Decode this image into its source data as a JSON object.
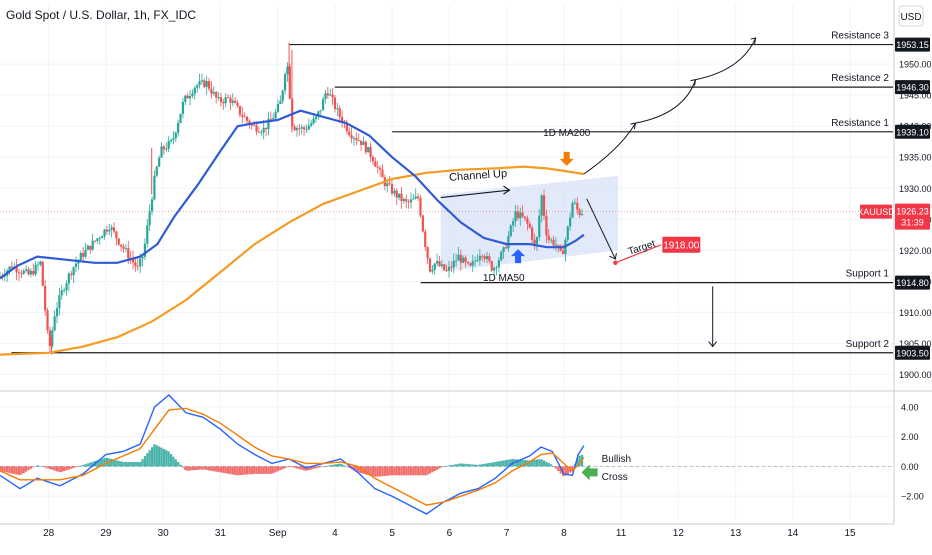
{
  "header": {
    "title": "Gold Spot / U.S. Dollar, 1h, FX_IDC",
    "currency": "USD"
  },
  "chart_data": [
    {
      "type": "candlestick",
      "symbol": "XAUUSD",
      "price_label": "1926.23",
      "countdown": "31:39",
      "y_ticks": [
        1900,
        1905,
        1910,
        1915,
        1920,
        1925,
        1930,
        1935,
        1940,
        1945,
        1950
      ],
      "y_tick_labels": [
        "1900.00",
        "1905.00",
        "1910.00",
        "1915.00",
        "1920.00",
        "1925.00",
        "1930.00",
        "1935.00",
        "1940.00",
        "1945.00",
        "1950.00"
      ],
      "ylim": [
        1897.5,
        1955.5
      ],
      "x_ticks": [
        {
          "x": 0,
          "label": "28"
        },
        {
          "x": 1,
          "label": "29"
        },
        {
          "x": 2,
          "label": "30"
        },
        {
          "x": 3,
          "label": "31"
        },
        {
          "x": 4,
          "label": "Sep"
        },
        {
          "x": 5,
          "label": "4"
        },
        {
          "x": 6,
          "label": "5"
        },
        {
          "x": 7,
          "label": "6"
        },
        {
          "x": 8,
          "label": "7"
        },
        {
          "x": 9,
          "label": "8"
        },
        {
          "x": 10,
          "label": "11"
        },
        {
          "x": 11,
          "label": "12"
        },
        {
          "x": 12,
          "label": "13"
        },
        {
          "x": 13,
          "label": "14"
        },
        {
          "x": 14,
          "label": "15"
        }
      ],
      "xlim": [
        -0.85,
        14.75
      ],
      "candles_path": [
        [
          -0.85,
          1915.5
        ],
        [
          -0.6,
          1917.5
        ],
        [
          -0.3,
          1916
        ],
        [
          -0.1,
          1918
        ],
        [
          0.05,
          1903.8
        ],
        [
          0.15,
          1910
        ],
        [
          0.3,
          1914
        ],
        [
          0.45,
          1917
        ],
        [
          0.6,
          1919
        ],
        [
          0.8,
          1921
        ],
        [
          0.95,
          1922.5
        ],
        [
          1.1,
          1924
        ],
        [
          1.3,
          1921
        ],
        [
          1.45,
          1919
        ],
        [
          1.6,
          1917
        ],
        [
          1.7,
          1919.5
        ],
        [
          1.8,
          1926
        ],
        [
          1.9,
          1932
        ],
        [
          2.0,
          1936
        ],
        [
          2.2,
          1937.5
        ],
        [
          2.4,
          1944
        ],
        [
          2.6,
          1946.5
        ],
        [
          2.8,
          1947
        ],
        [
          3.0,
          1944
        ],
        [
          3.2,
          1944.5
        ],
        [
          3.4,
          1942
        ],
        [
          3.6,
          1940
        ],
        [
          3.8,
          1939.5
        ],
        [
          4.0,
          1942
        ],
        [
          4.1,
          1944
        ],
        [
          4.2,
          1951
        ],
        [
          4.3,
          1940
        ],
        [
          4.5,
          1939.5
        ],
        [
          4.7,
          1941
        ],
        [
          4.8,
          1943
        ],
        [
          4.9,
          1946
        ],
        [
          5.1,
          1942
        ],
        [
          5.3,
          1939
        ],
        [
          5.5,
          1937.5
        ],
        [
          5.7,
          1935
        ],
        [
          5.9,
          1931
        ],
        [
          6.1,
          1929
        ],
        [
          6.3,
          1927.5
        ],
        [
          6.5,
          1928.5
        ],
        [
          6.6,
          1922
        ],
        [
          6.7,
          1917
        ],
        [
          6.8,
          1918
        ],
        [
          7.0,
          1916.5
        ],
        [
          7.2,
          1919
        ],
        [
          7.4,
          1917
        ],
        [
          7.6,
          1920
        ],
        [
          7.8,
          1917
        ],
        [
          8.0,
          1920
        ],
        [
          8.2,
          1926
        ],
        [
          8.35,
          1925
        ],
        [
          8.45,
          1923.5
        ],
        [
          8.55,
          1920
        ],
        [
          8.65,
          1929
        ],
        [
          8.75,
          1922
        ],
        [
          8.9,
          1921
        ],
        [
          9.0,
          1919
        ],
        [
          9.1,
          1923
        ],
        [
          9.2,
          1928
        ],
        [
          9.3,
          1926
        ],
        [
          9.35,
          1926.2
        ]
      ],
      "series": [
        {
          "name": "1D MA50",
          "color": "#2f5bd6",
          "points": [
            [
              -0.85,
              1915.5
            ],
            [
              -0.55,
              1917.5
            ],
            [
              -0.2,
              1919
            ],
            [
              0.3,
              1918.5
            ],
            [
              0.8,
              1918
            ],
            [
              1.2,
              1918
            ],
            [
              1.6,
              1919
            ],
            [
              1.9,
              1921
            ],
            [
              2.2,
              1925.5
            ],
            [
              2.6,
              1930.5
            ],
            [
              3.0,
              1936
            ],
            [
              3.3,
              1940
            ],
            [
              3.6,
              1940.5
            ],
            [
              4.0,
              1941
            ],
            [
              4.4,
              1942.5
            ],
            [
              4.8,
              1941.5
            ],
            [
              5.2,
              1940.5
            ],
            [
              5.6,
              1938.5
            ],
            [
              6.0,
              1935
            ],
            [
              6.4,
              1932
            ],
            [
              6.8,
              1928
            ],
            [
              7.2,
              1924.5
            ],
            [
              7.6,
              1922
            ],
            [
              8.0,
              1921
            ],
            [
              8.4,
              1921
            ],
            [
              8.7,
              1920.5
            ],
            [
              9.0,
              1920.5
            ],
            [
              9.2,
              1921.5
            ],
            [
              9.35,
              1922.5
            ]
          ]
        },
        {
          "name": "1D MA200",
          "color": "#f59b23",
          "points": [
            [
              -0.85,
              1903.2
            ],
            [
              0.0,
              1903.5
            ],
            [
              0.6,
              1904.5
            ],
            [
              1.2,
              1906
            ],
            [
              1.8,
              1908.5
            ],
            [
              2.4,
              1912
            ],
            [
              3.0,
              1916.5
            ],
            [
              3.6,
              1921
            ],
            [
              4.2,
              1924.5
            ],
            [
              4.8,
              1927.5
            ],
            [
              5.4,
              1929.5
            ],
            [
              6.0,
              1931.5
            ],
            [
              6.6,
              1932.5
            ],
            [
              7.2,
              1933
            ],
            [
              7.8,
              1933.2
            ],
            [
              8.3,
              1933.5
            ],
            [
              8.7,
              1933.2
            ],
            [
              9.0,
              1932.8
            ],
            [
              9.35,
              1932.3
            ]
          ]
        }
      ],
      "channel": {
        "label": "Channel Up",
        "lower": [
          [
            6.85,
            1916.5
          ],
          [
            9.95,
            1920
          ]
        ],
        "upper": [
          [
            6.85,
            1929
          ],
          [
            9.95,
            1932
          ]
        ]
      },
      "levels": [
        {
          "name": "Resistance 3",
          "value": 1953.15,
          "value_label": "1953.15",
          "x_start": 4.2
        },
        {
          "name": "Resistance 2",
          "value": 1946.3,
          "value_label": "1946.30",
          "x_start": 5.0
        },
        {
          "name": "Resistance 1",
          "value": 1939.1,
          "value_label": "1939.10",
          "x_start": 6.0
        },
        {
          "name": "Support 1",
          "value": 1914.8,
          "value_label": "1914.80",
          "x_start": 6.5
        },
        {
          "name": "Support 2",
          "value": 1903.5,
          "value_label": "1903.50",
          "x_start": -0.65
        }
      ],
      "target": {
        "label": "Target",
        "value": 1918.0,
        "value_label": "1918.00",
        "x": 9.9
      },
      "annotations": [
        "Channel Up",
        "1D MA200",
        "1D MA50",
        "Target"
      ]
    },
    {
      "type": "macd",
      "y_ticks": [
        -2,
        0,
        2,
        4
      ],
      "y_tick_labels": [
        "−2.00",
        "0.00",
        "2.00",
        "4.00"
      ],
      "ylim": [
        -3.6,
        5.0
      ],
      "macd": [
        [
          -0.85,
          -0.6
        ],
        [
          -0.5,
          -1.5
        ],
        [
          -0.2,
          -0.8
        ],
        [
          0.2,
          -1.3
        ],
        [
          0.6,
          -0.5
        ],
        [
          1.0,
          0.8
        ],
        [
          1.3,
          1.0
        ],
        [
          1.6,
          1.5
        ],
        [
          1.85,
          4.0
        ],
        [
          2.1,
          4.8
        ],
        [
          2.4,
          3.6
        ],
        [
          2.7,
          3.3
        ],
        [
          3.0,
          2.5
        ],
        [
          3.3,
          1.5
        ],
        [
          3.6,
          0.8
        ],
        [
          3.9,
          0.2
        ],
        [
          4.2,
          0.5
        ],
        [
          4.5,
          -0.1
        ],
        [
          4.8,
          0.2
        ],
        [
          5.1,
          0.5
        ],
        [
          5.4,
          -0.4
        ],
        [
          5.7,
          -1.5
        ],
        [
          6.0,
          -2.0
        ],
        [
          6.3,
          -2.6
        ],
        [
          6.6,
          -3.2
        ],
        [
          6.9,
          -2.4
        ],
        [
          7.2,
          -1.8
        ],
        [
          7.5,
          -1.5
        ],
        [
          7.8,
          -0.8
        ],
        [
          8.1,
          0.2
        ],
        [
          8.4,
          0.7
        ],
        [
          8.6,
          1.3
        ],
        [
          8.8,
          1.0
        ],
        [
          9.0,
          -0.5
        ],
        [
          9.15,
          -0.6
        ],
        [
          9.25,
          0.8
        ],
        [
          9.35,
          1.4
        ]
      ],
      "signal": [
        [
          -0.85,
          -0.3
        ],
        [
          -0.5,
          -0.9
        ],
        [
          -0.2,
          -0.9
        ],
        [
          0.2,
          -0.9
        ],
        [
          0.6,
          -0.6
        ],
        [
          1.0,
          0.2
        ],
        [
          1.3,
          0.7
        ],
        [
          1.6,
          1.2
        ],
        [
          1.85,
          2.5
        ],
        [
          2.1,
          3.8
        ],
        [
          2.4,
          3.9
        ],
        [
          2.7,
          3.5
        ],
        [
          3.0,
          2.9
        ],
        [
          3.3,
          2.1
        ],
        [
          3.6,
          1.3
        ],
        [
          3.9,
          0.7
        ],
        [
          4.2,
          0.5
        ],
        [
          4.5,
          0.2
        ],
        [
          4.8,
          0.2
        ],
        [
          5.1,
          0.3
        ],
        [
          5.4,
          0.0
        ],
        [
          5.7,
          -0.8
        ],
        [
          6.0,
          -1.4
        ],
        [
          6.3,
          -2.0
        ],
        [
          6.6,
          -2.6
        ],
        [
          6.9,
          -2.4
        ],
        [
          7.2,
          -2.0
        ],
        [
          7.5,
          -1.6
        ],
        [
          7.8,
          -1.1
        ],
        [
          8.1,
          -0.3
        ],
        [
          8.4,
          0.3
        ],
        [
          8.6,
          0.8
        ],
        [
          8.8,
          0.9
        ],
        [
          9.0,
          0.2
        ],
        [
          9.15,
          -0.3
        ],
        [
          9.25,
          0.1
        ],
        [
          9.35,
          0.6
        ]
      ],
      "histogram_colors": {
        "up": "#26a69a",
        "down": "#ef5350"
      },
      "annotation": {
        "line1": "Bullish",
        "line2": "Cross"
      }
    }
  ],
  "colors": {
    "bull": "#26a69a",
    "bear": "#ef5350",
    "level": "#1f1f1f",
    "price_tag": "#f23645",
    "ma_arrow_up": "#2962ff",
    "ma_arrow_down": "#f57c00",
    "bullish_arrow": "#4caf50",
    "channel_fill": "#cbd8f5"
  }
}
